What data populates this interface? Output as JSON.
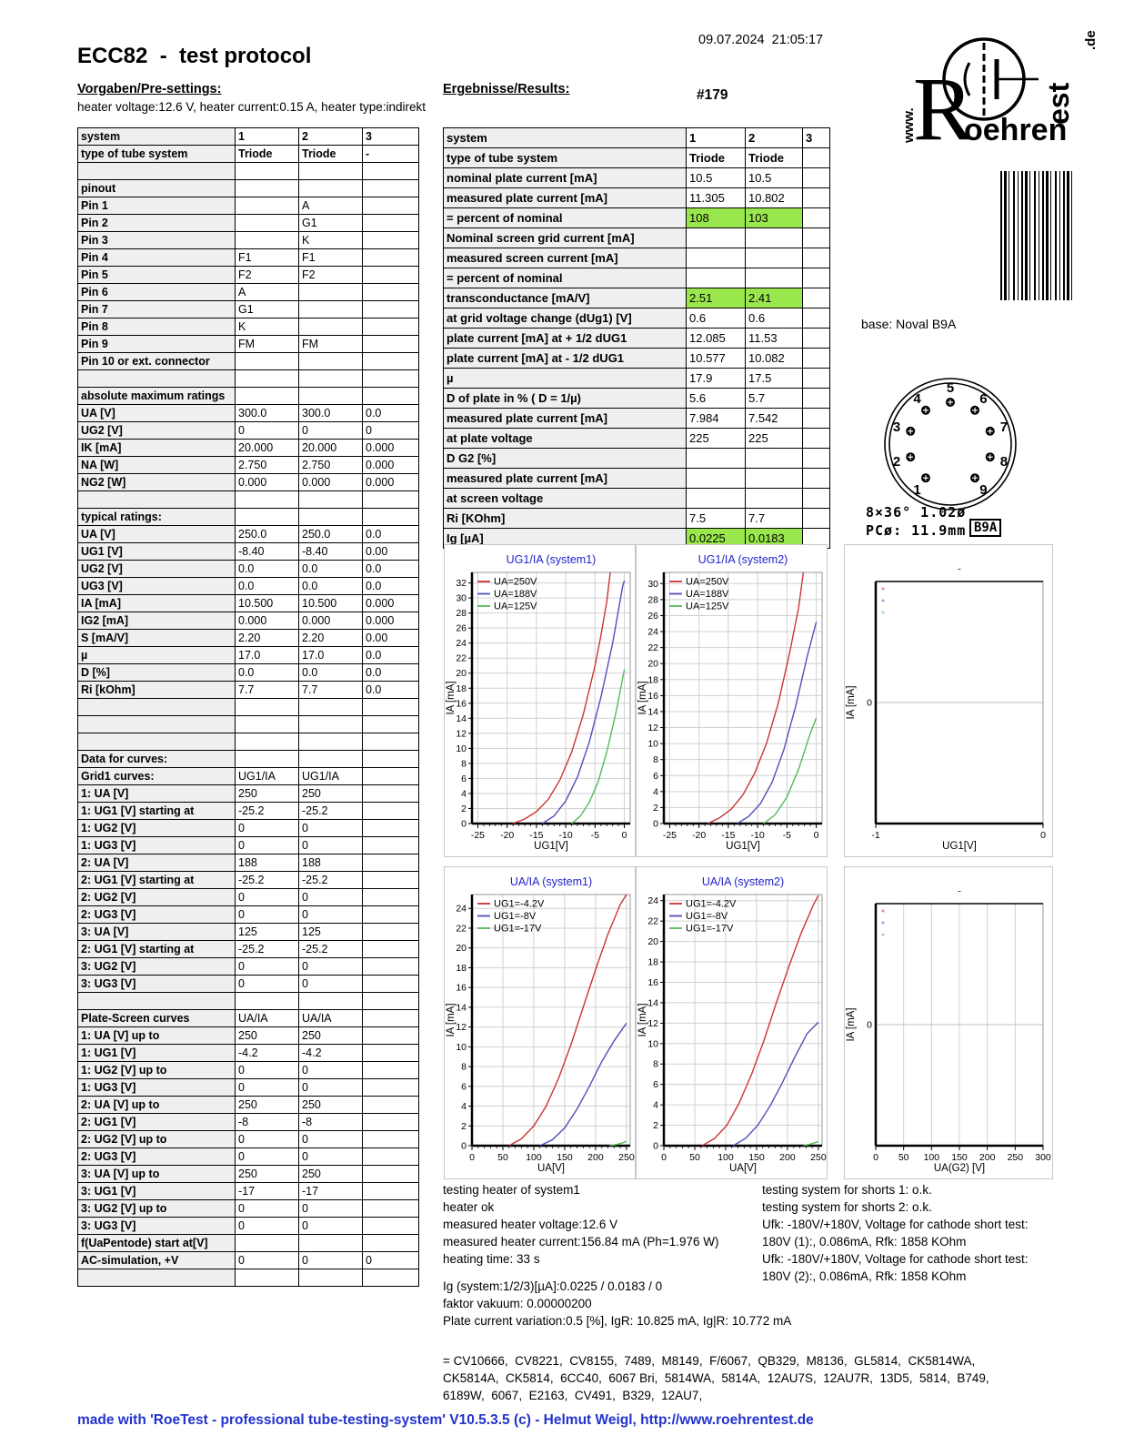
{
  "header": {
    "date": "09.07.2024  21:05:17",
    "title": "ECC82  -  test protocol",
    "presettings_label": "Vorgaben/Pre-settings:",
    "results_label": "Ergebnisse/Results:",
    "heater_line": "heater voltage:12.6 V, heater current:0.15 A, heater type:indirekt",
    "serial": "#179"
  },
  "logo": {
    "www": "www.",
    "r": "R",
    "oehren": "oehren",
    "est": "est",
    "de": ".de"
  },
  "base": {
    "label": "base: Noval B9A",
    "dim1": "8×36° 1.02ø",
    "dim2": "PCø: 11.9mm",
    "badge": "B9A",
    "pins": [
      "1",
      "2",
      "3",
      "4",
      "5",
      "6",
      "7",
      "8",
      "9"
    ]
  },
  "left_table": {
    "rows": [
      [
        "system",
        "1",
        "2",
        "3",
        "h"
      ],
      [
        "type of tube system",
        "Triode",
        "Triode",
        "-",
        "h"
      ],
      [
        "",
        "",
        "",
        ""
      ],
      [
        "pinout",
        "",
        "",
        ""
      ],
      [
        "Pin 1",
        "",
        "A",
        ""
      ],
      [
        "Pin 2",
        "",
        "G1",
        ""
      ],
      [
        "Pin 3",
        "",
        "K",
        ""
      ],
      [
        "Pin 4",
        "F1",
        "F1",
        ""
      ],
      [
        "Pin 5",
        "F2",
        "F2",
        ""
      ],
      [
        "Pin 6",
        "A",
        "",
        ""
      ],
      [
        "Pin 7",
        "G1",
        "",
        ""
      ],
      [
        "Pin 8",
        "K",
        "",
        ""
      ],
      [
        "Pin 9",
        "FM",
        "FM",
        ""
      ],
      [
        "Pin 10 or ext. connector",
        "",
        "",
        ""
      ],
      [
        "",
        "",
        "",
        ""
      ],
      [
        "absolute maximum ratings",
        "",
        "",
        ""
      ],
      [
        "UA [V]",
        "300.0",
        "300.0",
        "0.0"
      ],
      [
        "UG2 [V]",
        "0",
        "0",
        "0"
      ],
      [
        "IK [mA]",
        "20.000",
        "20.000",
        "0.000"
      ],
      [
        "NA [W]",
        "2.750",
        "2.750",
        "0.000"
      ],
      [
        "NG2 [W]",
        "0.000",
        "0.000",
        "0.000"
      ],
      [
        "",
        "",
        "",
        ""
      ],
      [
        "typical ratings:",
        "",
        "",
        ""
      ],
      [
        "UA [V]",
        "250.0",
        "250.0",
        "0.0"
      ],
      [
        "UG1 [V]",
        "-8.40",
        "-8.40",
        "0.00"
      ],
      [
        "UG2 [V]",
        "0.0",
        "0.0",
        "0.0"
      ],
      [
        "UG3 [V]",
        "0.0",
        "0.0",
        "0.0"
      ],
      [
        "IA [mA]",
        "10.500",
        "10.500",
        "0.000"
      ],
      [
        "IG2 [mA]",
        "0.000",
        "0.000",
        "0.000"
      ],
      [
        "S [mA/V]",
        "2.20",
        "2.20",
        "0.00"
      ],
      [
        "µ",
        "17.0",
        "17.0",
        "0.0"
      ],
      [
        "D [%]",
        "0.0",
        "0.0",
        "0.0"
      ],
      [
        "Ri [kOhm]",
        "7.7",
        "7.7",
        "0.0"
      ],
      [
        "",
        "",
        "",
        ""
      ],
      [
        "",
        "",
        "",
        ""
      ],
      [
        "",
        "",
        "",
        ""
      ],
      [
        "Data for curves:",
        "",
        "",
        ""
      ],
      [
        "Grid1 curves:",
        "UG1/IA",
        "UG1/IA",
        ""
      ],
      [
        "1: UA [V]",
        "250",
        "250",
        ""
      ],
      [
        "1: UG1 [V] starting at",
        "-25.2",
        "-25.2",
        ""
      ],
      [
        "1: UG2 [V]",
        "0",
        "0",
        ""
      ],
      [
        "1: UG3 [V]",
        "0",
        "0",
        ""
      ],
      [
        "2: UA [V]",
        "188",
        "188",
        ""
      ],
      [
        "2: UG1 [V] starting at",
        "-25.2",
        "-25.2",
        ""
      ],
      [
        "2: UG2 [V]",
        "0",
        "0",
        ""
      ],
      [
        "2: UG3 [V]",
        "0",
        "0",
        ""
      ],
      [
        "3: UA [V]",
        "125",
        "125",
        ""
      ],
      [
        "2: UG1 [V] starting at",
        "-25.2",
        "-25.2",
        ""
      ],
      [
        "3: UG2 [V]",
        "0",
        "0",
        ""
      ],
      [
        "3: UG3 [V]",
        "0",
        "0",
        ""
      ],
      [
        "",
        "",
        "",
        ""
      ],
      [
        "Plate-Screen curves",
        "UA/IA",
        "UA/IA",
        ""
      ],
      [
        "1: UA [V] up to",
        "250",
        "250",
        ""
      ],
      [
        "1: UG1 [V]",
        "-4.2",
        "-4.2",
        ""
      ],
      [
        "1: UG2 [V] up to",
        "0",
        "0",
        ""
      ],
      [
        "1: UG3 [V]",
        "0",
        "0",
        ""
      ],
      [
        "2: UA [V] up to",
        "250",
        "250",
        ""
      ],
      [
        "2: UG1 [V]",
        "-8",
        "-8",
        ""
      ],
      [
        "2: UG2 [V] up to",
        "0",
        "0",
        ""
      ],
      [
        "2: UG3 [V]",
        "0",
        "0",
        ""
      ],
      [
        "3: UA [V] up to",
        "250",
        "250",
        ""
      ],
      [
        "3: UG1 [V]",
        "-17",
        "-17",
        ""
      ],
      [
        "3: UG2 [V] up to",
        "0",
        "0",
        ""
      ],
      [
        "3: UG3 [V]",
        "0",
        "0",
        ""
      ],
      [
        "f(UaPentode) start at[V]",
        "",
        "",
        ""
      ],
      [
        "AC-simulation, +V",
        "0",
        "0",
        "0"
      ],
      [
        "",
        "",
        "",
        ""
      ]
    ]
  },
  "right_table": {
    "rows": [
      [
        "system",
        "1",
        "2",
        "3",
        "h"
      ],
      [
        "type of tube system",
        "Triode",
        "Triode",
        "",
        "h"
      ],
      [
        "nominal plate current [mA]",
        "10.5",
        "10.5",
        ""
      ],
      [
        "measured plate current [mA]",
        "11.305",
        "10.802",
        ""
      ],
      [
        "= percent of nominal",
        "108",
        "103",
        "",
        "g"
      ],
      [
        "Nominal screen grid current [mA]",
        "",
        "",
        ""
      ],
      [
        "measured screen current [mA]",
        "",
        "",
        ""
      ],
      [
        "= percent of nominal",
        "",
        "",
        ""
      ],
      [
        "transconductance [mA/V]",
        "2.51",
        "2.41",
        "",
        "g"
      ],
      [
        "at grid voltage change (dUg1) [V]",
        "0.6",
        "0.6",
        ""
      ],
      [
        "plate current [mA] at + 1/2 dUG1",
        "12.085",
        "11.53",
        ""
      ],
      [
        "plate current [mA] at - 1/2 dUG1",
        "10.577",
        "10.082",
        ""
      ],
      [
        "µ",
        "17.9",
        "17.5",
        ""
      ],
      [
        "D of plate in % ( D = 1/µ)",
        "5.6",
        "5.7",
        ""
      ],
      [
        "measured plate current [mA]",
        "7.984",
        "7.542",
        ""
      ],
      [
        "at plate voltage",
        "225",
        "225",
        ""
      ],
      [
        "D G2 [%]",
        "",
        "",
        ""
      ],
      [
        "measured plate current [mA]",
        "",
        "",
        ""
      ],
      [
        "at screen voltage",
        "",
        "",
        ""
      ],
      [
        "Ri [KOhm]",
        "7.5",
        "7.7",
        ""
      ],
      [
        "Ig [µA]",
        "0.0225",
        "0.0183",
        "",
        "g"
      ]
    ]
  },
  "colors": {
    "accent_blue": "#2233cc",
    "highlight_green": "#9ae64d",
    "curve_red": "#cc3333",
    "curve_blue": "#5050bb",
    "curve_green": "#55bb55"
  },
  "chart_data": [
    {
      "type": "line",
      "title": "UG1/IA (system1)",
      "xlabel": "UG1[V]",
      "ylabel": "IA [mA]",
      "xlim": [
        -26,
        1
      ],
      "ylim": [
        0,
        33.4
      ],
      "xticks": [
        -25,
        -20,
        -15,
        -10,
        -5,
        0
      ],
      "xminor": 1,
      "ystep": 2,
      "ymax_tick": 32,
      "legend_pos": "top-left",
      "series": [
        {
          "name": "UA=250V",
          "color": "#cc3333",
          "points": [
            [
              -19,
              0
            ],
            [
              -17,
              0.6
            ],
            [
              -15,
              1.6
            ],
            [
              -13,
              3.2
            ],
            [
              -11,
              5.8
            ],
            [
              -9,
              9.5
            ],
            [
              -7,
              14.5
            ],
            [
              -5,
              21
            ],
            [
              -4,
              25
            ],
            [
              -3,
              29.5
            ],
            [
              -2.4,
              33.4
            ]
          ]
        },
        {
          "name": "UA=188V",
          "color": "#5050bb",
          "points": [
            [
              -14,
              0
            ],
            [
              -12,
              1
            ],
            [
              -10,
              3
            ],
            [
              -8,
              6.2
            ],
            [
              -6,
              10.8
            ],
            [
              -4,
              16.8
            ],
            [
              -2,
              24
            ],
            [
              -0.3,
              31.5
            ],
            [
              0,
              32.3
            ]
          ]
        },
        {
          "name": "UA=125V",
          "color": "#55bb55",
          "points": [
            [
              -9,
              0
            ],
            [
              -7.5,
              1
            ],
            [
              -6,
              2.8
            ],
            [
              -4.5,
              5.5
            ],
            [
              -3,
              9.5
            ],
            [
              -1.5,
              14.5
            ],
            [
              0,
              20.5
            ]
          ]
        }
      ]
    },
    {
      "type": "line",
      "title": "UG1/IA (system2)",
      "xlabel": "UG1[V]",
      "ylabel": "IA [mA]",
      "xlim": [
        -26,
        1
      ],
      "ylim": [
        0,
        31.4
      ],
      "xticks": [
        -25,
        -20,
        -15,
        -10,
        -5,
        0
      ],
      "xminor": 1,
      "ystep": 2,
      "ymax_tick": 30,
      "legend_pos": "top-left",
      "series": [
        {
          "name": "UA=250V",
          "color": "#cc3333",
          "points": [
            [
              -18.5,
              0
            ],
            [
              -16.5,
              0.7
            ],
            [
              -14.5,
              1.8
            ],
            [
              -12.5,
              3.6
            ],
            [
              -10.5,
              6.3
            ],
            [
              -8.5,
              10
            ],
            [
              -6.5,
              15
            ],
            [
              -4.5,
              21.5
            ],
            [
              -3,
              27
            ],
            [
              -2.2,
              31.4
            ]
          ]
        },
        {
          "name": "UA=188V",
          "color": "#5050bb",
          "points": [
            [
              -13.5,
              0
            ],
            [
              -11.5,
              0.9
            ],
            [
              -9.5,
              2.5
            ],
            [
              -7.5,
              5.2
            ],
            [
              -5.5,
              9.3
            ],
            [
              -3.5,
              14.7
            ],
            [
              -1.5,
              21
            ],
            [
              0,
              25.2
            ]
          ]
        },
        {
          "name": "UA=125V",
          "color": "#55bb55",
          "points": [
            [
              -9,
              0
            ],
            [
              -7,
              1.1
            ],
            [
              -5,
              3.3
            ],
            [
              -3,
              6.8
            ],
            [
              -1,
              11.3
            ],
            [
              0,
              13.2
            ]
          ]
        }
      ]
    },
    {
      "type": "line",
      "title": "UA/IA (system1)",
      "xlabel": "UA[V]",
      "ylabel": "IA [mA]",
      "xlim": [
        0,
        256
      ],
      "ylim": [
        0,
        25.4
      ],
      "xticks": [
        0,
        50,
        100,
        150,
        200,
        250
      ],
      "xminor": 10,
      "ystep": 2,
      "ymax_tick": 24,
      "legend_pos": "top-left",
      "series": [
        {
          "name": "UG1=-4.2V",
          "color": "#cc3333",
          "points": [
            [
              60,
              0
            ],
            [
              80,
              0.7
            ],
            [
              100,
              2
            ],
            [
              120,
              4
            ],
            [
              140,
              6.8
            ],
            [
              160,
              10.2
            ],
            [
              180,
              14
            ],
            [
              200,
              17.8
            ],
            [
              220,
              21.4
            ],
            [
              240,
              24.4
            ],
            [
              250,
              25.4
            ]
          ]
        },
        {
          "name": "UG1=-8V",
          "color": "#5050bb",
          "points": [
            [
              110,
              0
            ],
            [
              130,
              0.6
            ],
            [
              150,
              1.8
            ],
            [
              170,
              3.7
            ],
            [
              190,
              6
            ],
            [
              210,
              8.5
            ],
            [
              230,
              10.6
            ],
            [
              250,
              12.4
            ]
          ]
        },
        {
          "name": "UG1=-17V",
          "color": "#55bb55",
          "points": [
            [
              222,
              0
            ],
            [
              232,
              0.1
            ],
            [
              242,
              0.25
            ],
            [
              250,
              0.45
            ]
          ]
        }
      ]
    },
    {
      "type": "line",
      "title": "UA/IA (system2)",
      "xlabel": "UA[V]",
      "ylabel": "IA [mA]",
      "xlim": [
        0,
        256
      ],
      "ylim": [
        0,
        24.6
      ],
      "xticks": [
        0,
        50,
        100,
        150,
        200,
        250
      ],
      "xminor": 10,
      "ystep": 2,
      "ymax_tick": 24,
      "legend_pos": "top-left",
      "series": [
        {
          "name": "UG1=-4.2V",
          "color": "#cc3333",
          "points": [
            [
              62,
              0
            ],
            [
              82,
              0.7
            ],
            [
              102,
              2
            ],
            [
              122,
              4.2
            ],
            [
              142,
              7
            ],
            [
              162,
              10.3
            ],
            [
              182,
              14
            ],
            [
              202,
              17.5
            ],
            [
              222,
              20.8
            ],
            [
              242,
              23.6
            ],
            [
              250,
              24.5
            ]
          ]
        },
        {
          "name": "UG1=-8V",
          "color": "#5050bb",
          "points": [
            [
              112,
              0
            ],
            [
              132,
              0.7
            ],
            [
              152,
              2
            ],
            [
              172,
              3.9
            ],
            [
              192,
              6.2
            ],
            [
              212,
              8.7
            ],
            [
              232,
              11
            ],
            [
              250,
              12.1
            ]
          ]
        },
        {
          "name": "UG1=-17V",
          "color": "#55bb55",
          "points": [
            [
              225,
              0
            ],
            [
              237,
              0.15
            ],
            [
              250,
              0.4
            ]
          ]
        }
      ]
    },
    {
      "type": "line",
      "title": "-",
      "xlabel": "UG1[V]",
      "ylabel": "IA [mA]",
      "xlim": [
        -1,
        0
      ],
      "xticks": [
        -1,
        0
      ],
      "empty": true,
      "series": []
    },
    {
      "type": "line",
      "title": "-",
      "xlabel": "UA(G2) [V]",
      "ylabel": "IA [mA]",
      "xlim": [
        0,
        300
      ],
      "xticks": [
        0,
        50,
        100,
        150,
        200,
        250,
        300
      ],
      "empty": true,
      "series": []
    }
  ],
  "notes_left": [
    "testing heater of system1",
    "heater ok",
    "measured heater voltage:12.6 V",
    "measured heater current:156.84 mA (Ph=1.976 W)",
    "heating time: 33 s"
  ],
  "notes_right": [
    "testing system for shorts 1: o.k.",
    "testing system for shorts 2: o.k.",
    "Ufk: -180V/+180V, Voltage for cathode short test:",
    "180V (1):, 0.086mA, Rfk: 1858 KOhm",
    "Ufk: -180V/+180V, Voltage for cathode short test:",
    "180V (2):, 0.086mA, Rfk: 1858 KOhm"
  ],
  "notes_misc": [
    "Ig (system:1/2/3)[µA]:0.0225 / 0.0183 / 0",
    "faktor vakuum: 0.00000200",
    "Plate current variation:0.5 [%], IgR: 10.825 mA, Ig|R: 10.772 mA"
  ],
  "equivalents": [
    "= CV10666,  CV8221,  CV8155,  7489,  M8149,  F/6067,  QB329,  M8136,  GL5814,  CK5814WA,",
    "CK5814A,  CK5814,  6CC40,  6067 Bri,  5814WA,  5814A,  12AU7S,  12AU7R,  13D5,  5814,  B749,",
    "6189W,  6067,  E2163,  CV491,  B329,  12AU7,"
  ],
  "footer": "made with 'RoeTest - professional tube-testing-system' V10.5.3.5 (c) - Helmut Weigl, http://www.roehrentest.de"
}
